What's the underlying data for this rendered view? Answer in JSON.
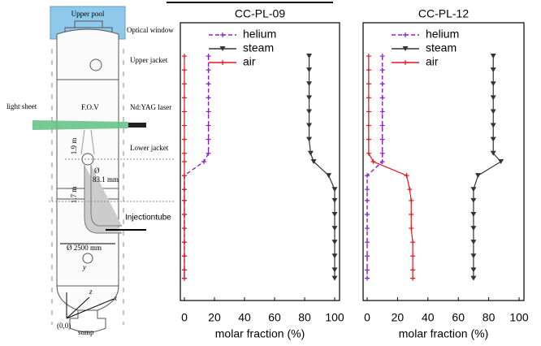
{
  "diagram": {
    "labels": [
      "Upper pool",
      "Optical  window",
      "Upper jacket",
      "light sheet",
      "F.O.V",
      "Nd:YAG laser",
      "Lower jacket",
      "1.9 m",
      "Ø",
      "83.1 mm",
      "1.7 m",
      "Injectiontube",
      "Ø 2500 mm",
      "y",
      "x",
      "z",
      "(0,0)",
      "sump"
    ]
  },
  "chart_data": [
    {
      "type": "line",
      "title": "CC-PL-09",
      "xlabel": "molar fraction (%)",
      "xlim": [
        0,
        100
      ],
      "xticks": [
        0,
        20,
        40,
        60,
        80,
        100
      ],
      "ylim": [
        0,
        100
      ],
      "legend": "upper left",
      "y": [
        88,
        83,
        78,
        73,
        68,
        63,
        58,
        53,
        50,
        45,
        40,
        36,
        31,
        26,
        21,
        16,
        11,
        8
      ],
      "series": [
        {
          "name": "helium",
          "color": "#8b22c9",
          "dashed": true,
          "marker": "plus",
          "values": [
            16,
            16,
            16,
            16,
            16,
            16,
            16,
            16,
            13,
            0,
            0,
            0,
            0,
            0,
            0,
            0,
            0,
            0
          ]
        },
        {
          "name": "steam",
          "color": "#333333",
          "dashed": false,
          "marker": "triangle",
          "values": [
            83,
            83,
            83,
            83,
            83,
            83,
            83,
            84,
            86,
            96,
            100,
            100,
            100,
            100,
            100,
            100,
            100,
            100
          ]
        },
        {
          "name": "air",
          "color": "#e3161c",
          "dashed": false,
          "marker": "plus",
          "values": [
            0,
            0,
            0,
            0,
            0,
            0,
            0,
            0,
            0,
            0,
            0,
            0,
            0,
            0,
            0,
            0,
            0,
            0
          ]
        }
      ]
    },
    {
      "type": "line",
      "title": "CC-PL-12",
      "xlabel": "molar fraction (%)",
      "xlim": [
        0,
        100
      ],
      "xticks": [
        0,
        20,
        40,
        60,
        80,
        100
      ],
      "ylim": [
        0,
        100
      ],
      "legend": "upper left",
      "y": [
        88,
        83,
        78,
        73,
        68,
        63,
        58,
        53,
        50,
        45,
        40,
        36,
        31,
        26,
        21,
        16,
        11,
        8
      ],
      "series": [
        {
          "name": "helium",
          "color": "#8b22c9",
          "dashed": true,
          "marker": "plus",
          "values": [
            10,
            10,
            10,
            10,
            10,
            10,
            10,
            10,
            10,
            0,
            0,
            0,
            0,
            0,
            0,
            0,
            0,
            0
          ]
        },
        {
          "name": "steam",
          "color": "#333333",
          "dashed": false,
          "marker": "triangle",
          "values": [
            83,
            83,
            83,
            83,
            83,
            83,
            83,
            83,
            88,
            73,
            70,
            70,
            70,
            70,
            70,
            70,
            70,
            70
          ]
        },
        {
          "name": "air",
          "color": "#e3161c",
          "dashed": false,
          "marker": "plus",
          "values": [
            1,
            1,
            1,
            1,
            1,
            1,
            1,
            1,
            4,
            26,
            28,
            29,
            29,
            29,
            30,
            30,
            30,
            30
          ]
        }
      ]
    }
  ]
}
